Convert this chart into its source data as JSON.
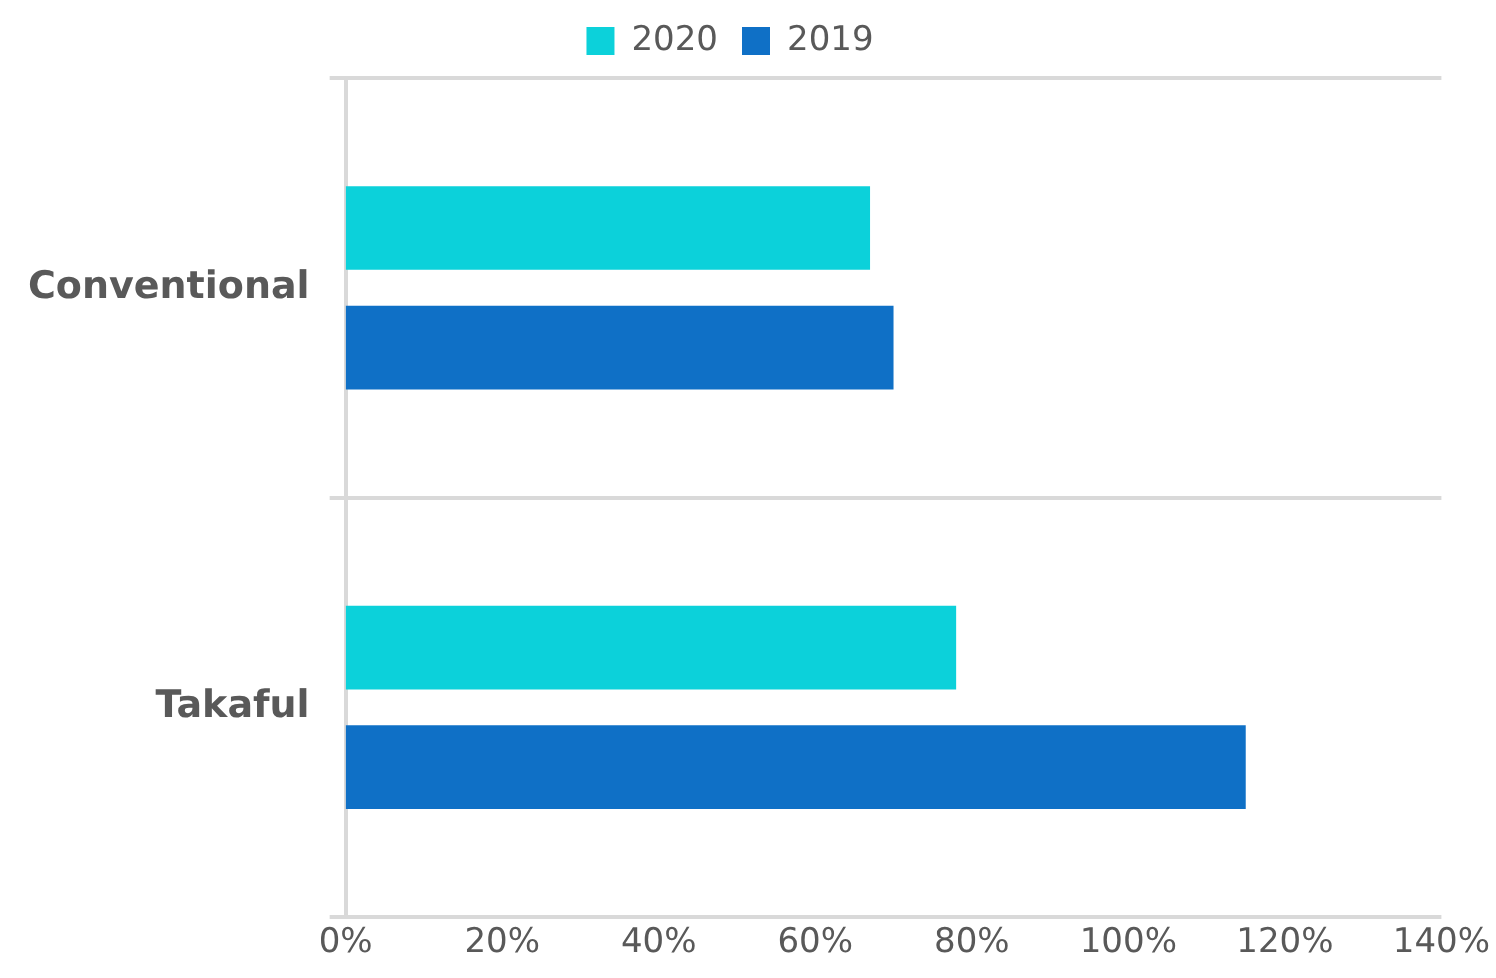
{
  "chart_data": {
    "type": "bar",
    "orientation": "horizontal",
    "categories": [
      "Conventional",
      "Takaful"
    ],
    "series": [
      {
        "name": "2020",
        "color": "#0cd1da",
        "values": [
          67,
          78
        ]
      },
      {
        "name": "2019",
        "color": "#0f70c6",
        "values": [
          70,
          115
        ]
      }
    ],
    "xlim": [
      0,
      140
    ],
    "xticks": [
      {
        "value": 0,
        "label": "0%"
      },
      {
        "value": 20,
        "label": "20%"
      },
      {
        "value": 40,
        "label": "40%"
      },
      {
        "value": 60,
        "label": "60%"
      },
      {
        "value": 80,
        "label": "80%"
      },
      {
        "value": 100,
        "label": "100%"
      },
      {
        "value": 120,
        "label": "120%"
      },
      {
        "value": 140,
        "label": "140%"
      }
    ],
    "grid": "y",
    "legend": "top"
  }
}
